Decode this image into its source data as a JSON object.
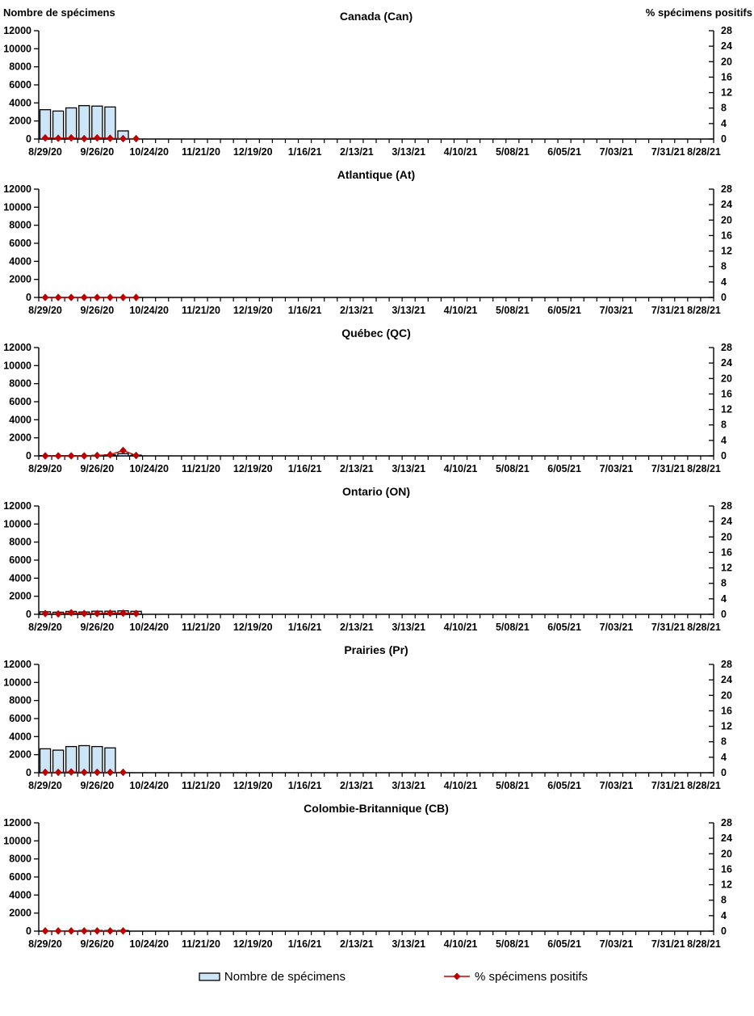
{
  "header": {
    "left_label": "Nombre de spécimens",
    "right_label": "% spécimens positifs"
  },
  "legend": {
    "items": [
      {
        "label": "Nombre de spécimens",
        "marker": "bar-swatch"
      },
      {
        "label": "% spécimens positifs",
        "marker": "line-diamond"
      }
    ]
  },
  "colors": {
    "background": "#FFFFFF",
    "bar_fill": "#CDE6F7",
    "bar_stroke": "#000000",
    "line": "#C00000",
    "marker_fill": "#C00000",
    "axis": "#000000",
    "text": "#000000"
  },
  "chart_data": {
    "type": "bar",
    "subtype": "combo-bar-line-small-multiples",
    "x_axis": {
      "start": "8/29/20",
      "end": "8/28/21",
      "weeks_total": 52,
      "tick_labels": [
        "8/29/20",
        "9/26/20",
        "10/24/20",
        "11/21/20",
        "12/19/20",
        "1/16/21",
        "2/13/21",
        "3/13/21",
        "4/10/21",
        "5/08/21",
        "6/05/21",
        "7/03/21",
        "7/31/21",
        "8/28/21"
      ]
    },
    "y_left": {
      "label": "Nombre de spécimens",
      "min": 0,
      "max": 12000,
      "ticks": [
        0,
        2000,
        4000,
        6000,
        8000,
        10000,
        12000
      ]
    },
    "y_right": {
      "label": "% spécimens positifs",
      "min": 0,
      "max": 28,
      "ticks": [
        0,
        4,
        8,
        12,
        16,
        20,
        24,
        28
      ]
    },
    "weeks_with_data": [
      "8/29/20",
      "9/05/20",
      "9/12/20",
      "9/19/20",
      "9/26/20",
      "10/03/20",
      "10/10/20",
      "10/17/20"
    ],
    "charts": [
      {
        "title": "Canada (Can)",
        "series": [
          {
            "name": "Nombre de spécimens",
            "type": "bar",
            "values": [
              3250,
              3100,
              3450,
              3700,
              3650,
              3550,
              900,
              null
            ]
          },
          {
            "name": "% spécimens positifs",
            "type": "line",
            "values": [
              0.3,
              0.2,
              0.3,
              0.1,
              0.3,
              0.2,
              0.1,
              0.1
            ]
          }
        ]
      },
      {
        "title": "Atlantique (At)",
        "series": [
          {
            "name": "Nombre de spécimens",
            "type": "bar",
            "values": [
              0,
              0,
              0,
              0,
              0,
              0,
              0,
              0
            ]
          },
          {
            "name": "% spécimens positifs",
            "type": "line",
            "values": [
              0,
              0,
              0,
              0,
              0,
              0,
              0,
              0
            ]
          }
        ]
      },
      {
        "title": "Québec (QC)",
        "series": [
          {
            "name": "Nombre de spécimens",
            "type": "bar",
            "values": [
              30,
              30,
              30,
              30,
              60,
              120,
              250,
              80
            ]
          },
          {
            "name": "% spécimens positifs",
            "type": "line",
            "values": [
              0,
              0,
              0,
              0,
              0.1,
              0.3,
              1.4,
              0.1
            ]
          }
        ]
      },
      {
        "title": "Ontario (ON)",
        "series": [
          {
            "name": "Nombre de spécimens",
            "type": "bar",
            "values": [
              280,
              230,
              320,
              260,
              340,
              340,
              380,
              330
            ]
          },
          {
            "name": "% spécimens positifs",
            "type": "line",
            "values": [
              0.2,
              0.1,
              0.4,
              0.2,
              0.2,
              0.3,
              0.3,
              0.2
            ]
          }
        ]
      },
      {
        "title": "Prairies (Pr)",
        "series": [
          {
            "name": "Nombre de spécimens",
            "type": "bar",
            "values": [
              2650,
              2500,
              2900,
              3000,
              2900,
              2750,
              null,
              null
            ]
          },
          {
            "name": "% spécimens positifs",
            "type": "line",
            "values": [
              0.1,
              0.1,
              0.2,
              0.1,
              0.1,
              0.1,
              0.1,
              null
            ]
          }
        ]
      },
      {
        "title": "Colombie-Britannique (CB)",
        "series": [
          {
            "name": "Nombre de spécimens",
            "type": "bar",
            "values": [
              0,
              0,
              40,
              70,
              70,
              70,
              70,
              null
            ]
          },
          {
            "name": "% spécimens positifs",
            "type": "line",
            "values": [
              0.05,
              0.05,
              0.05,
              0.05,
              0.05,
              0.05,
              0.05,
              null
            ]
          }
        ]
      }
    ]
  }
}
